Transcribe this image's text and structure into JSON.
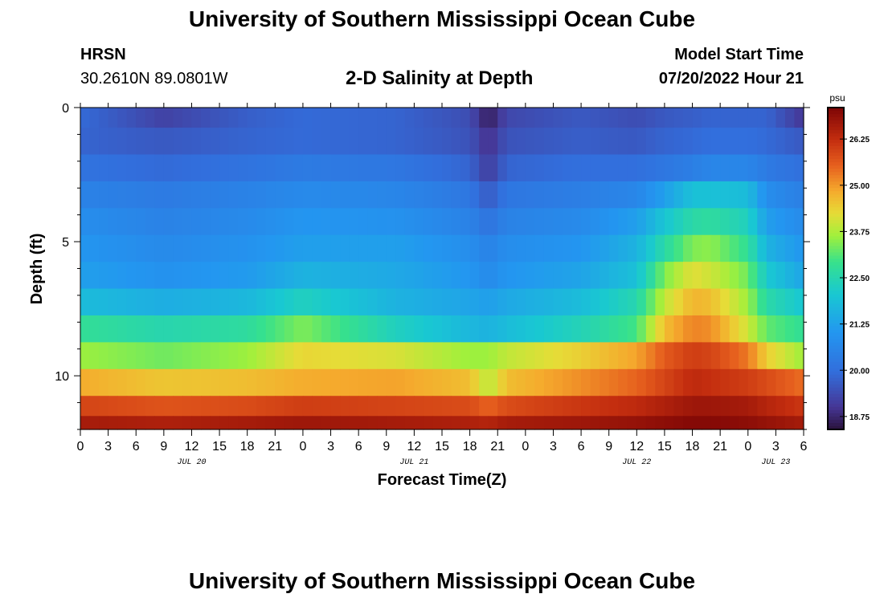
{
  "page_title": "University of Southern Mississippi Ocean Cube",
  "footer_title": "University of Southern Mississippi Ocean Cube",
  "station": {
    "id": "HRSN",
    "coords": "30.2610N  89.0801W"
  },
  "model_start": {
    "label": "Model Start Time",
    "value": "07/20/2022 Hour 21"
  },
  "chart_data": {
    "type": "heatmap",
    "title": "2-D Salinity at Depth",
    "xlabel": "Forecast Time(Z)",
    "ylabel": "Depth (ft)",
    "ylim": [
      0,
      12
    ],
    "y_ticks": [
      0,
      5,
      10
    ],
    "x_tick_labels": [
      "0",
      "3",
      "6",
      "9",
      "12",
      "15",
      "18",
      "21",
      "0",
      "3",
      "6",
      "9",
      "12",
      "15",
      "18",
      "21",
      "0",
      "3",
      "6",
      "9",
      "12",
      "15",
      "18",
      "21",
      "0",
      "3",
      "6"
    ],
    "date_labels": [
      {
        "label": "JUL 20",
        "hour": 12
      },
      {
        "label": "JUL 21",
        "hour": 36
      },
      {
        "label": "JUL 22",
        "hour": 60
      },
      {
        "label": "JUL 23",
        "hour": 75
      }
    ],
    "colorbar": {
      "unit": "psu",
      "min": 18.4,
      "max": 27.1,
      "ticks": [
        "26.25",
        "25.00",
        "23.75",
        "22.50",
        "21.25",
        "20.00",
        "18.75"
      ]
    },
    "x_range_hours": [
      0,
      78
    ],
    "depth_levels_ft": [
      0.25,
      1.25,
      2.25,
      3.25,
      4.25,
      5.25,
      6.25,
      7.25,
      8.25,
      9.25,
      10.25,
      11.25,
      11.75
    ],
    "keyframe_hours": [
      0,
      9,
      18,
      24,
      34,
      42,
      44,
      46,
      54,
      60,
      63,
      66,
      68,
      72,
      74,
      78
    ],
    "salinity_psu": [
      [
        19.9,
        19.2,
        19.7,
        19.9,
        19.8,
        19.4,
        18.6,
        19.3,
        19.6,
        19.4,
        19.6,
        19.7,
        19.8,
        19.8,
        19.8,
        19.0
      ],
      [
        19.8,
        19.6,
        19.8,
        19.9,
        19.8,
        19.5,
        18.9,
        19.5,
        19.7,
        19.6,
        19.8,
        19.9,
        20.0,
        20.0,
        19.9,
        19.6
      ],
      [
        20.1,
        19.9,
        20.1,
        20.3,
        20.2,
        19.8,
        19.1,
        19.8,
        20.0,
        20.0,
        20.2,
        20.4,
        20.6,
        20.6,
        20.3,
        20.0
      ],
      [
        20.5,
        20.3,
        20.5,
        20.7,
        20.6,
        20.2,
        19.6,
        20.2,
        20.4,
        20.6,
        21.2,
        21.9,
        21.9,
        21.8,
        20.8,
        20.4
      ],
      [
        20.8,
        20.5,
        20.7,
        21.0,
        20.9,
        20.5,
        20.1,
        20.5,
        20.7,
        21.2,
        22.0,
        22.6,
        22.7,
        22.3,
        21.2,
        20.7
      ],
      [
        21.0,
        20.7,
        20.9,
        21.2,
        21.2,
        20.8,
        20.5,
        20.8,
        21.0,
        21.6,
        22.6,
        23.4,
        23.5,
        22.8,
        21.6,
        21.0
      ],
      [
        21.2,
        20.9,
        21.1,
        21.6,
        21.4,
        21.0,
        20.7,
        21.0,
        21.3,
        21.9,
        23.4,
        24.2,
        24.0,
        23.3,
        22.1,
        21.3
      ],
      [
        21.8,
        21.5,
        21.7,
        22.3,
        21.6,
        21.3,
        21.2,
        21.4,
        21.8,
        22.5,
        23.9,
        24.7,
        24.6,
        23.6,
        22.6,
        22.0
      ],
      [
        22.8,
        22.5,
        22.7,
        23.4,
        22.3,
        21.7,
        21.6,
        21.8,
        22.4,
        23.0,
        24.6,
        25.2,
        25.1,
        24.0,
        23.2,
        22.8
      ],
      [
        23.6,
        23.3,
        23.6,
        24.3,
        24.1,
        23.6,
        23.6,
        23.9,
        24.4,
        24.9,
        25.6,
        26.0,
        25.9,
        25.3,
        24.4,
        23.6
      ],
      [
        24.8,
        24.5,
        24.6,
        24.8,
        24.9,
        24.6,
        23.8,
        24.6,
        25.1,
        25.5,
        25.9,
        26.3,
        26.2,
        26.0,
        25.8,
        25.4
      ],
      [
        25.9,
        25.7,
        25.8,
        26.0,
        25.9,
        25.8,
        25.5,
        25.8,
        26.1,
        26.3,
        26.5,
        26.7,
        26.7,
        26.6,
        26.4,
        26.1
      ],
      [
        26.6,
        26.5,
        26.6,
        26.7,
        26.6,
        26.5,
        26.4,
        26.6,
        26.7,
        26.8,
        26.9,
        27.0,
        27.0,
        26.9,
        26.8,
        26.6
      ]
    ]
  }
}
